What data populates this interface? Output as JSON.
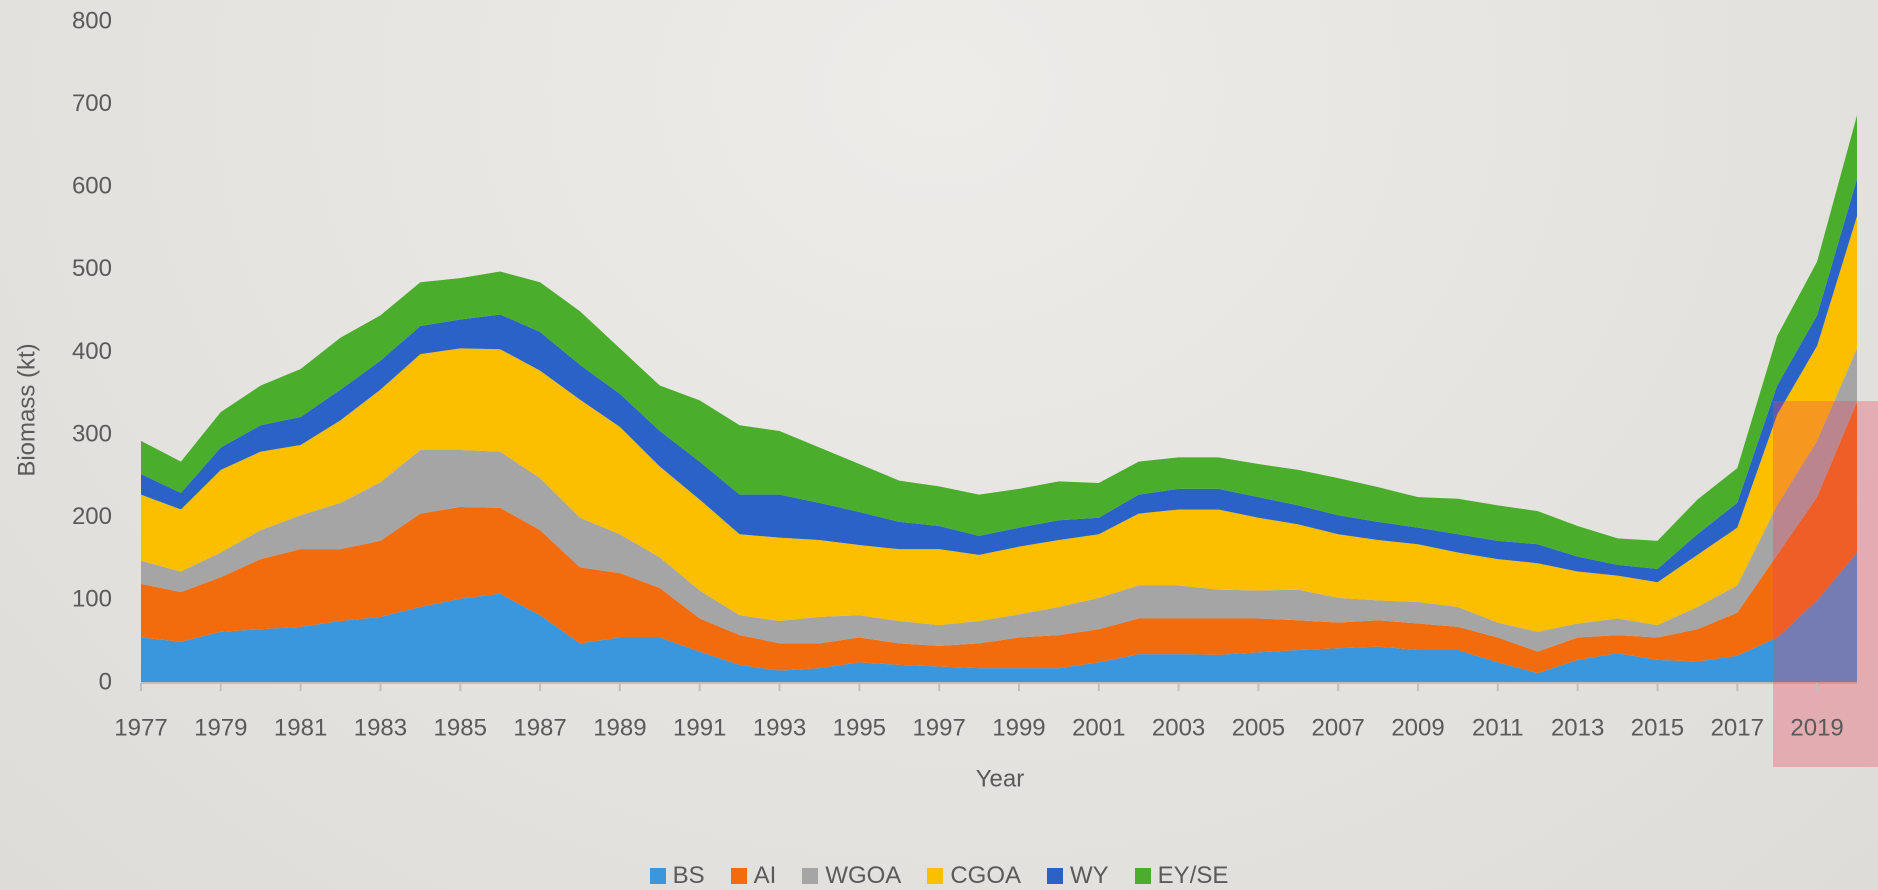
{
  "chart_data": {
    "type": "stacked-area",
    "x_label": "Year",
    "y_label": "Biomass (kt)",
    "x": [
      1977,
      1978,
      1979,
      1980,
      1981,
      1982,
      1983,
      1984,
      1985,
      1986,
      1987,
      1988,
      1989,
      1990,
      1991,
      1992,
      1993,
      1994,
      1995,
      1996,
      1997,
      1998,
      1999,
      2000,
      2001,
      2002,
      2003,
      2004,
      2005,
      2006,
      2007,
      2008,
      2009,
      2010,
      2011,
      2012,
      2013,
      2014,
      2015,
      2016,
      2017,
      2018,
      2019,
      2020
    ],
    "xlim": [
      1977,
      2020
    ],
    "xticks": [
      1977,
      1979,
      1981,
      1983,
      1985,
      1987,
      1989,
      1991,
      1993,
      1995,
      1997,
      1999,
      2001,
      2003,
      2005,
      2007,
      2009,
      2011,
      2013,
      2015,
      2017,
      2019
    ],
    "ylim": [
      0,
      800
    ],
    "yticks": [
      0,
      100,
      200,
      300,
      400,
      500,
      600,
      700,
      800
    ],
    "grid": false,
    "legend": "bottom",
    "series": [
      {
        "name": "BS",
        "color": "#3b97dd",
        "values": [
          55,
          50,
          62,
          65,
          68,
          75,
          80,
          92,
          102,
          108,
          82,
          48,
          55,
          55,
          38,
          22,
          15,
          18,
          25,
          22,
          20,
          18,
          18,
          18,
          25,
          35,
          35,
          34,
          37,
          40,
          42,
          44,
          40,
          40,
          25,
          12,
          28,
          36,
          28,
          26,
          33,
          55,
          100,
          158
        ]
      },
      {
        "name": "AI",
        "color": "#f26b0c",
        "values": [
          65,
          60,
          66,
          85,
          94,
          87,
          92,
          113,
          111,
          104,
          103,
          92,
          78,
          60,
          40,
          36,
          33,
          30,
          30,
          26,
          25,
          30,
          37,
          40,
          40,
          43,
          43,
          44,
          41,
          36,
          31,
          32,
          32,
          28,
          30,
          26,
          27,
          22,
          27,
          39,
          52,
          100,
          125,
          182
        ]
      },
      {
        "name": "WGOA",
        "color": "#a5a5a5",
        "values": [
          28,
          25,
          30,
          35,
          41,
          56,
          71,
          77,
          69,
          68,
          63,
          60,
          47,
          37,
          34,
          24,
          27,
          32,
          27,
          27,
          25,
          27,
          28,
          34,
          38,
          40,
          40,
          35,
          34,
          37,
          30,
          24,
          26,
          24,
          18,
          24,
          17,
          20,
          15,
          27,
          33,
          60,
          68,
          65
        ]
      },
      {
        "name": "CGOA",
        "color": "#fcbf00",
        "values": [
          80,
          75,
          100,
          95,
          85,
          100,
          112,
          116,
          123,
          124,
          130,
          143,
          130,
          110,
          110,
          98,
          101,
          93,
          85,
          87,
          92,
          80,
          82,
          81,
          77,
          87,
          92,
          97,
          88,
          79,
          77,
          73,
          70,
          66,
          77,
          83,
          63,
          52,
          52,
          63,
          70,
          110,
          115,
          160
        ]
      },
      {
        "name": "WY",
        "color": "#2a62c8",
        "values": [
          25,
          20,
          27,
          32,
          34,
          37,
          35,
          34,
          35,
          42,
          47,
          42,
          40,
          43,
          46,
          48,
          52,
          45,
          40,
          33,
          28,
          23,
          23,
          24,
          20,
          23,
          25,
          25,
          25,
          23,
          23,
          22,
          20,
          22,
          22,
          23,
          18,
          13,
          16,
          25,
          30,
          35,
          37,
          45
        ]
      },
      {
        "name": "EY/SE",
        "color": "#4aad2b",
        "values": [
          40,
          38,
          43,
          48,
          58,
          63,
          55,
          53,
          50,
          52,
          60,
          65,
          55,
          55,
          74,
          84,
          77,
          67,
          58,
          50,
          48,
          50,
          47,
          47,
          42,
          40,
          38,
          38,
          40,
          43,
          45,
          42,
          37,
          43,
          43,
          40,
          37,
          32,
          34,
          42,
          42,
          60,
          65,
          77
        ]
      }
    ]
  }
}
